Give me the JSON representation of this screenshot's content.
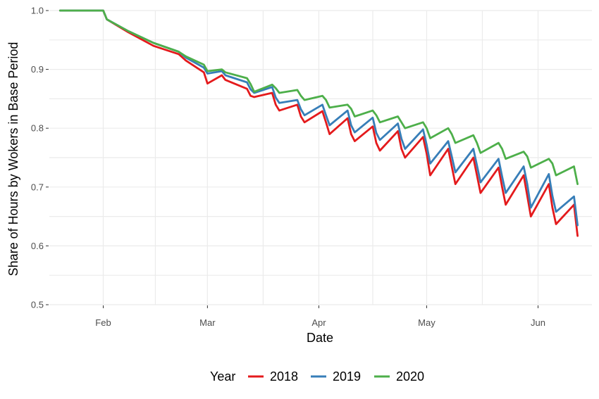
{
  "chart_data": {
    "type": "line",
    "xlabel": "Date",
    "ylabel": "Share of Hours by Wokers in Base Period",
    "ylim": [
      0.5,
      1.0
    ],
    "yticks": [
      0.5,
      0.6,
      0.7,
      0.8,
      0.9,
      1.0
    ],
    "ytick_labels": [
      "0.5",
      "0.6",
      "0.7",
      "0.8",
      "0.9",
      "1.0"
    ],
    "xlim": [
      "2020-01-17",
      "2020-06-16"
    ],
    "xticks": [
      "2020-02-01",
      "2020-03-01",
      "2020-04-01",
      "2020-05-01",
      "2020-06-01"
    ],
    "xtick_labels": [
      "Feb",
      "Mar",
      "Apr",
      "May",
      "Jun"
    ],
    "grid": true,
    "legend": {
      "title": "Year",
      "position": "bottom"
    },
    "series": [
      {
        "name": "2018",
        "color": "#e41a1c",
        "x": [
          "2020-01-20",
          "2020-02-01",
          "2020-02-02",
          "2020-02-08",
          "2020-02-15",
          "2020-02-22",
          "2020-02-24",
          "2020-02-29",
          "2020-03-01",
          "2020-03-05",
          "2020-03-06",
          "2020-03-12",
          "2020-03-13",
          "2020-03-14",
          "2020-03-19",
          "2020-03-20",
          "2020-03-21",
          "2020-03-26",
          "2020-03-27",
          "2020-03-28",
          "2020-04-02",
          "2020-04-03",
          "2020-04-04",
          "2020-04-09",
          "2020-04-10",
          "2020-04-11",
          "2020-04-16",
          "2020-04-17",
          "2020-04-18",
          "2020-04-23",
          "2020-04-24",
          "2020-04-25",
          "2020-04-30",
          "2020-05-01",
          "2020-05-02",
          "2020-05-07",
          "2020-05-08",
          "2020-05-09",
          "2020-05-14",
          "2020-05-15",
          "2020-05-16",
          "2020-05-21",
          "2020-05-22",
          "2020-05-23",
          "2020-05-28",
          "2020-05-29",
          "2020-05-30",
          "2020-06-04",
          "2020-06-05",
          "2020-06-06",
          "2020-06-11",
          "2020-06-12"
        ],
        "values": [
          1.0,
          1.0,
          0.985,
          0.963,
          0.94,
          0.926,
          0.915,
          0.895,
          0.876,
          0.89,
          0.882,
          0.867,
          0.855,
          0.853,
          0.86,
          0.84,
          0.83,
          0.84,
          0.82,
          0.81,
          0.829,
          0.81,
          0.79,
          0.817,
          0.79,
          0.778,
          0.803,
          0.775,
          0.762,
          0.795,
          0.765,
          0.75,
          0.785,
          0.757,
          0.72,
          0.765,
          0.735,
          0.705,
          0.75,
          0.72,
          0.69,
          0.733,
          0.7,
          0.67,
          0.72,
          0.685,
          0.65,
          0.705,
          0.665,
          0.637,
          0.67,
          0.617
        ]
      },
      {
        "name": "2019",
        "color": "#377eb8",
        "x": [
          "2020-01-20",
          "2020-02-01",
          "2020-02-02",
          "2020-02-08",
          "2020-02-15",
          "2020-02-22",
          "2020-02-24",
          "2020-02-29",
          "2020-03-01",
          "2020-03-05",
          "2020-03-06",
          "2020-03-12",
          "2020-03-13",
          "2020-03-14",
          "2020-03-19",
          "2020-03-20",
          "2020-03-21",
          "2020-03-26",
          "2020-03-27",
          "2020-03-28",
          "2020-04-02",
          "2020-04-03",
          "2020-04-04",
          "2020-04-09",
          "2020-04-10",
          "2020-04-11",
          "2020-04-16",
          "2020-04-17",
          "2020-04-18",
          "2020-04-23",
          "2020-04-24",
          "2020-04-25",
          "2020-04-30",
          "2020-05-01",
          "2020-05-02",
          "2020-05-07",
          "2020-05-08",
          "2020-05-09",
          "2020-05-14",
          "2020-05-15",
          "2020-05-16",
          "2020-05-21",
          "2020-05-22",
          "2020-05-23",
          "2020-05-28",
          "2020-05-29",
          "2020-05-30",
          "2020-06-04",
          "2020-06-05",
          "2020-06-06",
          "2020-06-11",
          "2020-06-12"
        ],
        "values": [
          1.0,
          1.0,
          0.985,
          0.965,
          0.945,
          0.93,
          0.92,
          0.903,
          0.893,
          0.897,
          0.89,
          0.878,
          0.866,
          0.86,
          0.87,
          0.852,
          0.843,
          0.848,
          0.832,
          0.822,
          0.84,
          0.822,
          0.805,
          0.83,
          0.805,
          0.793,
          0.818,
          0.792,
          0.78,
          0.808,
          0.782,
          0.765,
          0.798,
          0.772,
          0.74,
          0.778,
          0.752,
          0.725,
          0.765,
          0.737,
          0.708,
          0.748,
          0.718,
          0.69,
          0.735,
          0.705,
          0.665,
          0.722,
          0.685,
          0.658,
          0.684,
          0.635
        ]
      },
      {
        "name": "2020",
        "color": "#4daf4a",
        "x": [
          "2020-01-20",
          "2020-02-01",
          "2020-02-02",
          "2020-02-08",
          "2020-02-15",
          "2020-02-22",
          "2020-02-24",
          "2020-02-29",
          "2020-03-01",
          "2020-03-05",
          "2020-03-06",
          "2020-03-12",
          "2020-03-13",
          "2020-03-14",
          "2020-03-19",
          "2020-03-20",
          "2020-03-21",
          "2020-03-26",
          "2020-03-27",
          "2020-03-28",
          "2020-04-02",
          "2020-04-03",
          "2020-04-04",
          "2020-04-09",
          "2020-04-10",
          "2020-04-11",
          "2020-04-16",
          "2020-04-17",
          "2020-04-18",
          "2020-04-23",
          "2020-04-24",
          "2020-04-25",
          "2020-04-30",
          "2020-05-01",
          "2020-05-02",
          "2020-05-07",
          "2020-05-08",
          "2020-05-09",
          "2020-05-14",
          "2020-05-15",
          "2020-05-16",
          "2020-05-21",
          "2020-05-22",
          "2020-05-23",
          "2020-05-28",
          "2020-05-29",
          "2020-05-30",
          "2020-06-04",
          "2020-06-05",
          "2020-06-06",
          "2020-06-11",
          "2020-06-12"
        ],
        "values": [
          1.0,
          1.0,
          0.985,
          0.965,
          0.945,
          0.93,
          0.922,
          0.908,
          0.897,
          0.9,
          0.895,
          0.885,
          0.875,
          0.862,
          0.874,
          0.868,
          0.86,
          0.865,
          0.855,
          0.848,
          0.855,
          0.848,
          0.835,
          0.84,
          0.833,
          0.82,
          0.83,
          0.822,
          0.81,
          0.82,
          0.81,
          0.8,
          0.81,
          0.8,
          0.783,
          0.8,
          0.79,
          0.775,
          0.788,
          0.775,
          0.758,
          0.775,
          0.765,
          0.748,
          0.76,
          0.752,
          0.733,
          0.748,
          0.74,
          0.72,
          0.735,
          0.705
        ]
      }
    ]
  }
}
